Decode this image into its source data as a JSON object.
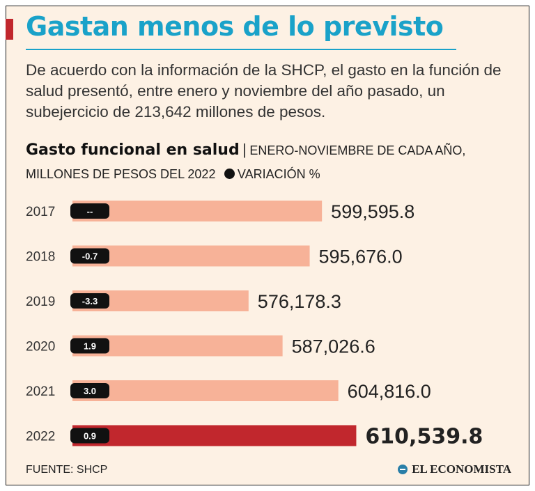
{
  "header": {
    "title": "Gastan menos de lo previsto",
    "intro": "De acuerdo con la información de la SHCP, el gasto en la función de salud presentó, entre enero y noviembre del año pasado, un subejercicio de 213,642 millones de pesos."
  },
  "chart_header": {
    "title": "Gasto funcional en salud",
    "separator": "|",
    "subtitle_part1": "ENERO-NOVIEMBRE DE CADA AÑO, MILLONES DE PESOS DEL 2022",
    "legend_label": "VARIACIÓN %"
  },
  "chart_data": {
    "type": "bar",
    "orientation": "horizontal",
    "title": "Gasto funcional en salud",
    "subtitle": "ENERO-NOVIEMBRE DE CADA AÑO, MILLONES DE PESOS DEL 2022",
    "categories": [
      "2017",
      "2018",
      "2019",
      "2020",
      "2021",
      "2022"
    ],
    "series": [
      {
        "name": "Gasto (millones de pesos del 2022)",
        "values": [
          599595.8,
          595676.0,
          576178.3,
          587026.6,
          604816.0,
          610539.8
        ],
        "value_labels": [
          "599,595.8",
          "595,676.0",
          "576,178.3",
          "587,026.6",
          "604,816.0",
          "610,539.8"
        ]
      },
      {
        "name": "VARIACIÓN %",
        "labels": [
          "--",
          "-0.7",
          "-3.3",
          "1.9",
          "3.0",
          "0.9"
        ]
      }
    ],
    "highlight_index": 5,
    "colors": {
      "bar": "#f7b298",
      "highlight": "#c1272d",
      "badge": "#111111"
    },
    "axis": {
      "visible": false,
      "xlim": [
        520000,
        615000
      ]
    }
  },
  "footer": {
    "source": "FUENTE: SHCP",
    "publisher": "EL ECONOMISTA"
  }
}
